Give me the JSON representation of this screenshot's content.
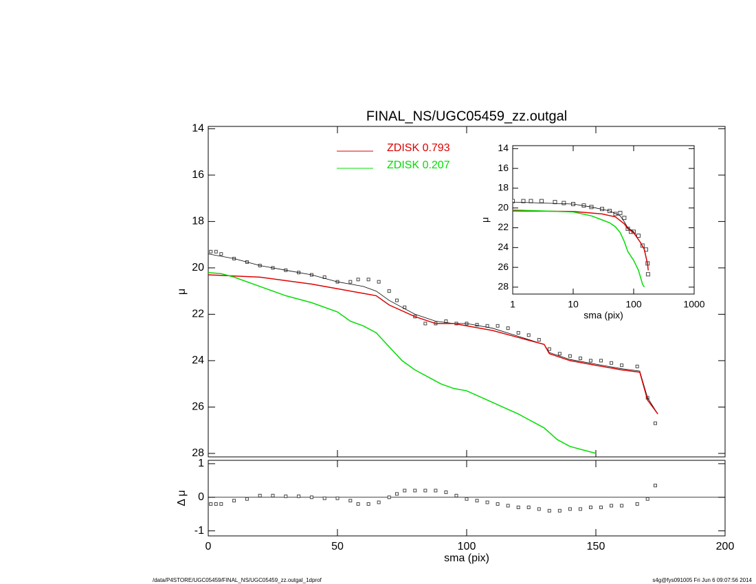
{
  "footer": {
    "left": "/data/P4STORE/UGC05459/FINAL_NS/UGC05459_zz.outgal_1dprof",
    "right": "s4g@fys091005  Fri Jun  6 09:07:56 2014"
  },
  "chart_data": [
    {
      "type": "line",
      "title": "FINAL_NS/UGC05459_zz.outgal",
      "ylabel": "μ",
      "xlim": [
        0,
        200
      ],
      "xticks": [
        0,
        50,
        100,
        150,
        200
      ],
      "ylim": [
        13.9,
        28.15
      ],
      "yticks": [
        14,
        16,
        18,
        20,
        22,
        24,
        26,
        28
      ],
      "yreverse": true,
      "legend": "top",
      "series": [
        {
          "mode": "markers",
          "color": "#444444",
          "x": [
            1,
            3,
            5,
            10,
            15,
            20,
            25,
            30,
            35,
            40,
            45,
            50,
            55,
            58,
            62,
            66,
            70,
            73,
            76,
            80,
            84,
            88,
            92,
            96,
            100,
            104,
            108,
            112,
            116,
            120,
            124,
            128,
            132,
            136,
            140,
            144,
            148,
            152,
            156,
            160,
            166,
            170,
            173
          ],
          "values": [
            19.3,
            19.3,
            19.4,
            19.6,
            19.75,
            19.9,
            20.0,
            20.1,
            20.2,
            20.3,
            20.4,
            20.6,
            20.6,
            20.5,
            20.5,
            20.6,
            21.0,
            21.4,
            21.7,
            22.1,
            22.4,
            22.4,
            22.3,
            22.4,
            22.4,
            22.45,
            22.5,
            22.5,
            22.6,
            22.8,
            22.9,
            23.1,
            23.5,
            23.7,
            23.8,
            23.9,
            24.0,
            24.0,
            24.1,
            24.2,
            24.25,
            25.6,
            26.7
          ]
        },
        {
          "mode": "lines",
          "color": "#000000",
          "x": [
            0,
            10,
            20,
            30,
            40,
            50,
            55,
            60,
            65,
            70,
            75,
            80,
            88,
            95,
            100,
            110,
            120,
            130,
            132,
            140,
            150,
            160,
            167,
            170,
            174
          ],
          "values": [
            19.4,
            19.6,
            19.9,
            20.1,
            20.3,
            20.6,
            20.7,
            20.8,
            21.0,
            21.4,
            21.7,
            22.0,
            22.3,
            22.4,
            22.4,
            22.6,
            22.95,
            23.3,
            23.65,
            23.95,
            24.15,
            24.35,
            24.45,
            25.6,
            26.3
          ]
        },
        {
          "mode": "lines",
          "name": "ZDISK  0.793",
          "color": "#dd0000",
          "x": [
            0,
            20,
            40,
            50,
            60,
            65,
            70,
            80,
            88,
            95,
            100,
            110,
            120,
            130,
            132,
            140,
            150,
            160,
            167,
            170,
            174
          ],
          "values": [
            20.3,
            20.4,
            20.7,
            20.9,
            21.1,
            21.2,
            21.6,
            22.1,
            22.4,
            22.4,
            22.5,
            22.7,
            23.0,
            23.3,
            23.7,
            24.0,
            24.2,
            24.4,
            24.5,
            25.7,
            26.3
          ]
        },
        {
          "mode": "lines",
          "name": "ZDISK  0.207",
          "color": "#00dd00",
          "x": [
            0,
            5,
            10,
            20,
            30,
            40,
            50,
            55,
            60,
            65,
            70,
            75,
            80,
            90,
            95,
            100,
            110,
            120,
            130,
            135,
            140,
            150
          ],
          "values": [
            20.2,
            20.25,
            20.4,
            20.8,
            21.2,
            21.5,
            21.9,
            22.3,
            22.5,
            22.8,
            23.4,
            24.0,
            24.4,
            25.0,
            25.2,
            25.3,
            25.8,
            26.3,
            26.9,
            27.4,
            27.7,
            28.0
          ]
        }
      ]
    },
    {
      "type": "scatter",
      "xlabel": "sma (pix)",
      "ylabel": "Δ μ",
      "zeroline": true,
      "xlim": [
        0,
        200
      ],
      "xticks": [
        0,
        50,
        100,
        150,
        200
      ],
      "ylim": [
        -1.15,
        1.1
      ],
      "yticks": [
        -1,
        0,
        1
      ],
      "series": [
        {
          "mode": "markers",
          "color": "#444444",
          "x": [
            1,
            3,
            5,
            10,
            15,
            20,
            25,
            30,
            35,
            40,
            45,
            50,
            55,
            58,
            62,
            66,
            70,
            73,
            76,
            80,
            84,
            88,
            92,
            96,
            100,
            104,
            108,
            112,
            116,
            120,
            124,
            128,
            132,
            136,
            140,
            144,
            148,
            152,
            156,
            160,
            166,
            170,
            173
          ],
          "values": [
            -0.2,
            -0.2,
            -0.2,
            -0.1,
            -0.05,
            0.05,
            0.05,
            0.03,
            0.03,
            0.0,
            -0.03,
            -0.03,
            -0.1,
            -0.2,
            -0.2,
            -0.15,
            0.0,
            0.1,
            0.2,
            0.2,
            0.2,
            0.2,
            0.15,
            0.05,
            -0.05,
            -0.1,
            -0.15,
            -0.2,
            -0.25,
            -0.3,
            -0.3,
            -0.35,
            -0.4,
            -0.4,
            -0.35,
            -0.35,
            -0.3,
            -0.3,
            -0.25,
            -0.25,
            -0.2,
            -0.05,
            0.35
          ]
        }
      ]
    },
    {
      "type": "line",
      "xlabel": "sma (pix)",
      "ylabel": "μ",
      "xscale": "log",
      "xlim": [
        1,
        1000
      ],
      "xticks": [
        1,
        10,
        100,
        1000
      ],
      "ylim": [
        13.7,
        28.7
      ],
      "yticks": [
        14,
        16,
        18,
        20,
        22,
        24,
        26,
        28
      ],
      "yreverse": true,
      "series": [
        {
          "mode": "markers",
          "color": "#444444",
          "x": [
            1,
            1.5,
            2,
            3,
            5,
            7,
            10,
            15,
            20,
            30,
            40,
            50,
            60,
            70,
            80,
            90,
            100,
            120,
            140,
            160,
            170,
            173
          ],
          "values": [
            19.3,
            19.3,
            19.3,
            19.3,
            19.4,
            19.5,
            19.6,
            19.75,
            19.9,
            20.1,
            20.3,
            20.6,
            20.5,
            21.0,
            22.1,
            22.4,
            22.4,
            22.8,
            23.8,
            24.2,
            25.6,
            26.7
          ]
        },
        {
          "mode": "lines",
          "color": "#000000",
          "x": [
            1,
            10,
            20,
            40,
            60,
            70,
            80,
            100,
            130,
            150,
            170,
            174
          ],
          "values": [
            19.4,
            19.6,
            19.9,
            20.3,
            20.8,
            21.4,
            22.0,
            22.4,
            23.5,
            24.15,
            25.6,
            26.3
          ]
        },
        {
          "mode": "lines",
          "color": "#dd0000",
          "x": [
            1,
            10,
            30,
            50,
            70,
            80,
            100,
            130,
            150,
            170,
            174
          ],
          "values": [
            20.3,
            20.35,
            20.6,
            20.9,
            21.6,
            22.1,
            22.5,
            23.5,
            24.2,
            25.7,
            26.3
          ]
        },
        {
          "mode": "lines",
          "color": "#00dd00",
          "x": [
            1,
            10,
            20,
            30,
            40,
            50,
            60,
            70,
            80,
            100,
            120,
            140,
            150
          ],
          "values": [
            20.2,
            20.4,
            20.8,
            21.2,
            21.5,
            21.9,
            22.5,
            23.4,
            24.4,
            25.3,
            26.3,
            27.7,
            28.0
          ]
        }
      ]
    }
  ]
}
